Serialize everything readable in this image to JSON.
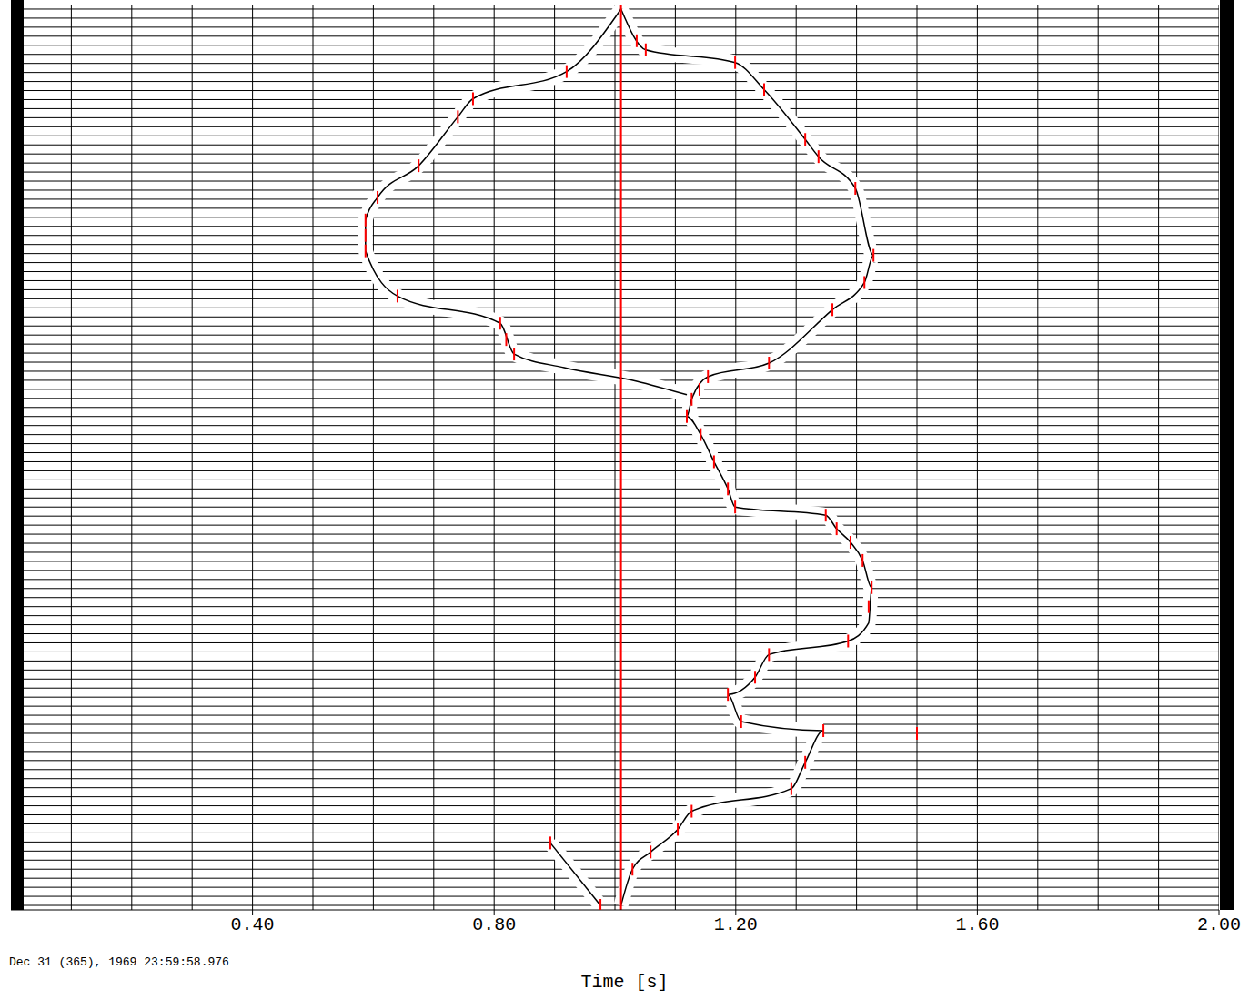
{
  "chart_data": {
    "type": "seismic_traces",
    "x_label": "Time [s]",
    "annotation": "Dec 31 (365), 1969 23:59:58.976",
    "xlim": [
      0,
      2.0
    ],
    "xticks": [
      {
        "value": 0.4,
        "label": "0.40"
      },
      {
        "value": 0.8,
        "label": "0.80"
      },
      {
        "value": 1.2,
        "label": "1.20"
      },
      {
        "value": 1.6,
        "label": "1.60"
      },
      {
        "value": 2.0,
        "label": "2.00"
      }
    ],
    "ylim": [
      0.5,
      100.5
    ],
    "trace_count": 100,
    "grid": true,
    "grid_lines": [
      0.1,
      0.2,
      0.3,
      0.4,
      0.5,
      0.6,
      0.7,
      0.8,
      0.9,
      1.0,
      1.1,
      1.2,
      1.3,
      1.4,
      1.5,
      1.6,
      1.7,
      1.8,
      1.9,
      2.0
    ],
    "tick_labels": "x",
    "reference_time": 1.01,
    "reference_color": "#ff0000",
    "series": [
      {
        "type": "line",
        "color": "#000000",
        "x": [
          1.01,
          0.92,
          0.765,
          0.74,
          0.675,
          0.607,
          0.587,
          0.587,
          0.64,
          0.81,
          0.833,
          0.916,
          1.036,
          1.119
        ],
        "values": [
          1,
          7.9,
          10.9,
          12.9,
          18.3,
          21.8,
          24.3,
          27.7,
          32.7,
          35.7,
          39.1,
          40.6,
          42.1,
          43.6
        ]
      },
      {
        "type": "line",
        "color": "#000000",
        "x": [
          1.01,
          1.051,
          1.199,
          1.247,
          1.315,
          1.337,
          1.398,
          1.428,
          1.413,
          1.36,
          1.255,
          1.154,
          1.127,
          1.119,
          1.142,
          1.164,
          1.187,
          1.199,
          1.349,
          1.367,
          1.39,
          1.41,
          1.425,
          1.42,
          1.386,
          1.255,
          1.232,
          1.187,
          1.209,
          1.345,
          1.315,
          1.292,
          1.127,
          1.104,
          1.059,
          1.029,
          1.01
        ],
        "values": [
          1,
          5.5,
          6.9,
          9.9,
          15.4,
          17.3,
          20.8,
          28.2,
          31.2,
          34.2,
          40.1,
          41.6,
          44.1,
          46,
          48,
          51,
          54,
          56,
          56.9,
          58.4,
          59.9,
          61.9,
          64.9,
          68.8,
          70.8,
          72.3,
          74.8,
          76.7,
          79.7,
          80.7,
          84.2,
          87.1,
          89.6,
          91.6,
          94.1,
          96,
          100
        ]
      },
      {
        "type": "line",
        "color": "#000000",
        "x": [
          0.893,
          0.976
        ],
        "values": [
          93.1,
          100
        ]
      },
      {
        "type": "scatter",
        "color": "#ff0000",
        "marker": "tick",
        "x": [
          0.92,
          0.765,
          0.74,
          0.675,
          0.607,
          0.587,
          0.587,
          0.587,
          0.64,
          0.81,
          0.82,
          0.833,
          1.036,
          1.051,
          1.199,
          1.247,
          1.315,
          1.337,
          1.398,
          1.428,
          1.413,
          1.36,
          1.255,
          1.154,
          1.14,
          1.127,
          1.119,
          1.142,
          1.164,
          1.187,
          1.199,
          1.349,
          1.367,
          1.39,
          1.41,
          1.425,
          1.42,
          1.386,
          1.255,
          1.232,
          1.187,
          1.209,
          1.345,
          1.315,
          1.292,
          1.127,
          1.104,
          1.059,
          1.029,
          0.893,
          0.976,
          1.5
        ],
        "values": [
          7.9,
          10.9,
          12.9,
          18.3,
          21.8,
          24.3,
          26,
          27.7,
          32.7,
          35.7,
          37.5,
          39.1,
          4.5,
          5.5,
          6.9,
          9.9,
          15.4,
          17.3,
          20.8,
          28.2,
          31.2,
          34.2,
          40.1,
          41.6,
          43,
          44.1,
          46,
          48,
          51,
          54,
          56,
          56.9,
          58.4,
          59.9,
          61.9,
          64.9,
          67,
          70.8,
          72.3,
          74.8,
          76.7,
          79.7,
          80.7,
          84.2,
          87.1,
          89.6,
          91.6,
          94.1,
          96,
          93.1,
          100,
          81
        ]
      }
    ]
  }
}
